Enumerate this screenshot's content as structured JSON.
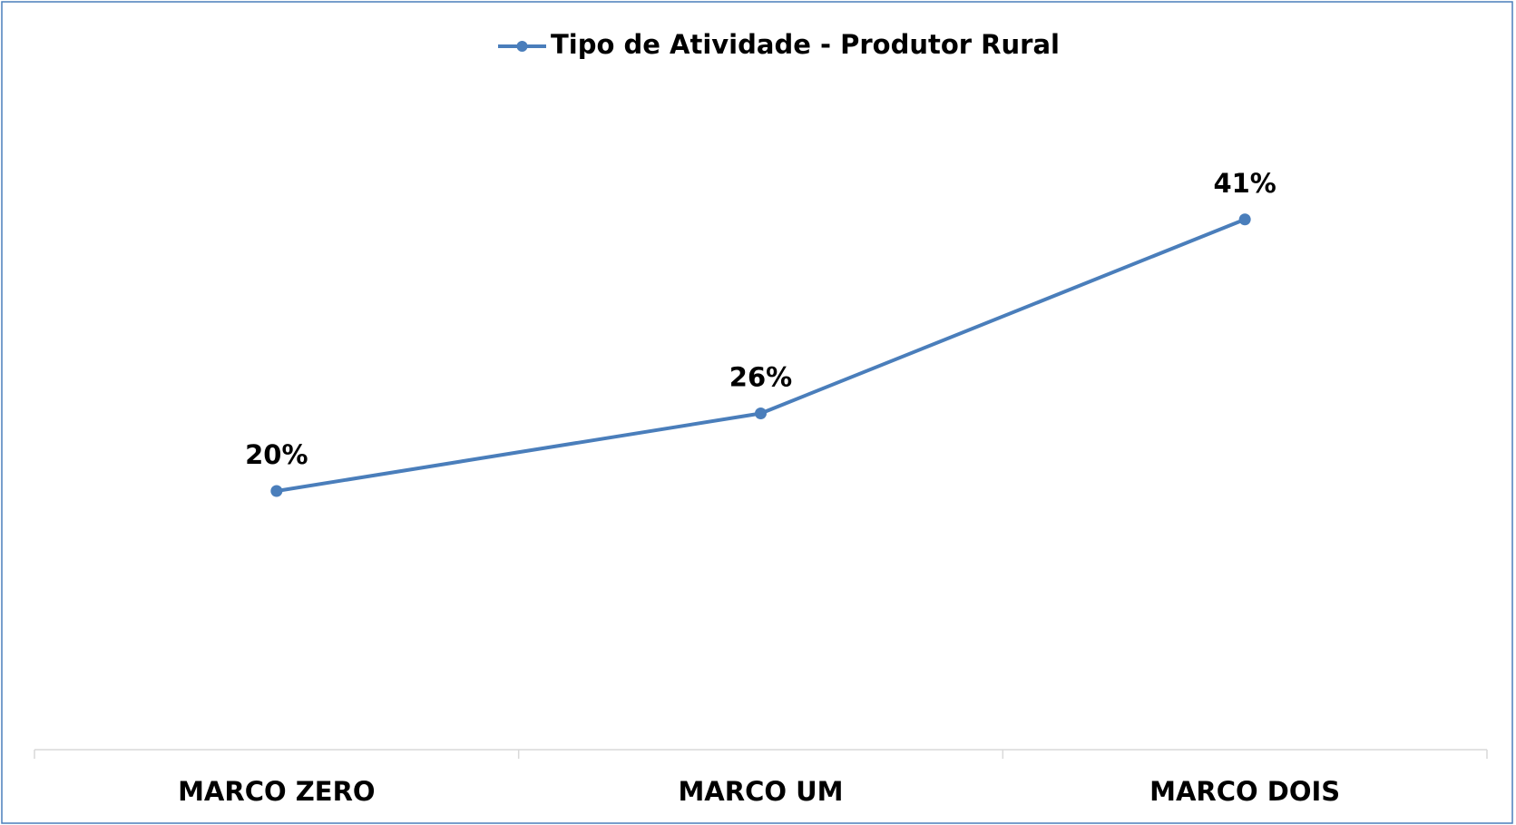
{
  "chart_data": {
    "type": "line",
    "categories": [
      "MARCO ZERO",
      "MARCO UM",
      "MARCO DOIS"
    ],
    "series": [
      {
        "name": "Tipo de Atividade - Produtor Rural",
        "color": "#4a7ebb",
        "values": [
          20,
          26,
          41
        ],
        "value_labels": [
          "20%",
          "26%",
          "41%"
        ]
      }
    ],
    "ylim": [
      0,
      50
    ],
    "legend": "top",
    "grid": false
  }
}
